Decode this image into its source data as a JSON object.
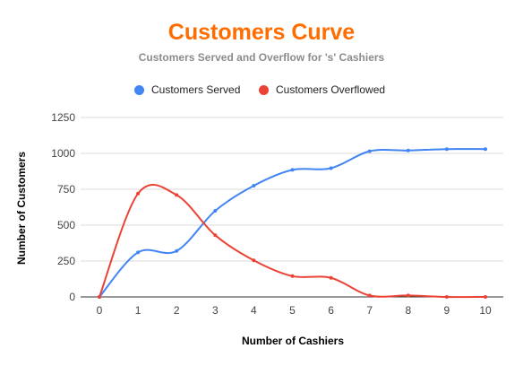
{
  "chart_data": {
    "type": "line",
    "title": "Customers Curve",
    "subtitle": "Customers Served and Overflow for 's' Cashiers",
    "xlabel": "Number of Cashiers",
    "ylabel": "Number of Customers",
    "x": [
      0,
      1,
      2,
      3,
      4,
      5,
      6,
      7,
      8,
      9,
      10
    ],
    "xlim": [
      0,
      10
    ],
    "ylim": [
      0,
      1250
    ],
    "yticks": [
      0,
      250,
      500,
      750,
      1000,
      1250
    ],
    "grid": true,
    "legend_position": "top",
    "smooth": true,
    "series": [
      {
        "name": "Customers Served",
        "color": "#4285f4",
        "values": [
          0,
          310,
          320,
          600,
          775,
          885,
          897,
          1015,
          1020,
          1030,
          1030
        ]
      },
      {
        "name": "Customers Overflowed",
        "color": "#ea4335",
        "values": [
          0,
          720,
          710,
          430,
          255,
          145,
          133,
          10,
          10,
          0,
          0
        ]
      }
    ]
  }
}
